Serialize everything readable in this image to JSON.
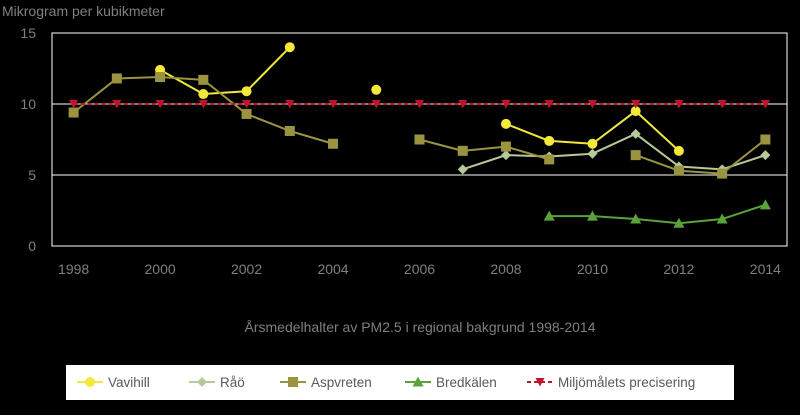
{
  "chart_data": {
    "type": "line",
    "title": "",
    "xlabel": "Årsmedelhalter av PM2.5 i regional bakgrund 1998-2014",
    "ylabel": "Mikrogram per kubikmeter",
    "xlim": [
      1998,
      2014
    ],
    "ylim": [
      0,
      15
    ],
    "xticks": [
      "1998",
      "2000",
      "2002",
      "2004",
      "2006",
      "2008",
      "2010",
      "2012",
      "2014"
    ],
    "yticks": [
      "0",
      "5",
      "10",
      "15"
    ],
    "grid": "horizontal",
    "legend_position": "bottom",
    "series": [
      {
        "name": "Vavihill",
        "color": "#f2e93b",
        "marker": "circle",
        "points": [
          [
            2000,
            12.4
          ],
          [
            2001,
            10.7
          ],
          [
            2002,
            10.9
          ],
          [
            2003,
            14.0
          ],
          [
            2005,
            11.0
          ],
          [
            2008,
            8.6
          ],
          [
            2009,
            7.4
          ],
          [
            2010,
            7.2
          ],
          [
            2011,
            9.5
          ],
          [
            2012,
            6.7
          ]
        ]
      },
      {
        "name": "Råö",
        "color": "#b7c99a",
        "marker": "diamond",
        "points": [
          [
            2007,
            5.4
          ],
          [
            2008,
            6.4
          ],
          [
            2009,
            6.3
          ],
          [
            2010,
            6.5
          ],
          [
            2011,
            7.9
          ],
          [
            2012,
            5.6
          ],
          [
            2013,
            5.4
          ],
          [
            2014,
            6.4
          ]
        ]
      },
      {
        "name": "Aspvreten",
        "color": "#9a9440",
        "marker": "square",
        "points": [
          [
            1998,
            9.4
          ],
          [
            1999,
            11.8
          ],
          [
            2000,
            11.9
          ],
          [
            2001,
            11.7
          ],
          [
            2002,
            9.3
          ],
          [
            2003,
            8.1
          ],
          [
            2004,
            7.2
          ],
          [
            2006,
            7.5
          ],
          [
            2007,
            6.7
          ],
          [
            2008,
            7.0
          ],
          [
            2009,
            6.1
          ],
          [
            2011,
            6.4
          ],
          [
            2012,
            5.3
          ],
          [
            2013,
            5.1
          ],
          [
            2014,
            7.5
          ]
        ]
      },
      {
        "name": "Bredkälen",
        "color": "#5aa33a",
        "marker": "triangle",
        "points": [
          [
            2009,
            2.1
          ],
          [
            2010,
            2.1
          ],
          [
            2011,
            1.9
          ],
          [
            2012,
            1.6
          ],
          [
            2013,
            1.9
          ],
          [
            2014,
            2.9
          ]
        ]
      },
      {
        "name": "Miljömålets precisering",
        "color": "#c0142a",
        "marker": "triangle-down",
        "dashed": true,
        "points": [
          [
            1998,
            10
          ],
          [
            1999,
            10
          ],
          [
            2000,
            10
          ],
          [
            2001,
            10
          ],
          [
            2002,
            10
          ],
          [
            2003,
            10
          ],
          [
            2004,
            10
          ],
          [
            2005,
            10
          ],
          [
            2006,
            10
          ],
          [
            2007,
            10
          ],
          [
            2008,
            10
          ],
          [
            2009,
            10
          ],
          [
            2010,
            10
          ],
          [
            2011,
            10
          ],
          [
            2012,
            10
          ],
          [
            2013,
            10
          ],
          [
            2014,
            10
          ]
        ]
      }
    ]
  }
}
